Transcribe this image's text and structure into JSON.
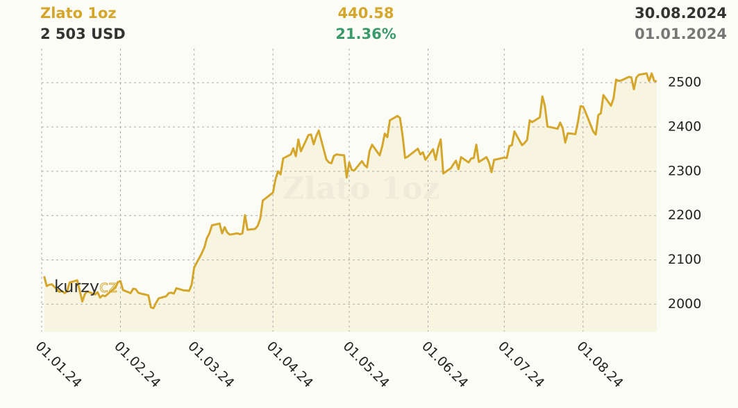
{
  "chart_data": {
    "type": "line",
    "title": "Zlato 1oz",
    "annotations": {
      "price": "2 503 USD",
      "change": "440.58",
      "change_pct": "21.36%",
      "date_end": "30.08.2024",
      "date_start": "01.01.2024",
      "watermark": "Zlato 1oz",
      "logo_main": "kurzy",
      "logo_accent": "cz"
    },
    "x": [
      "2024-01-02",
      "2024-01-03",
      "2024-01-04",
      "2024-01-05",
      "2024-01-08",
      "2024-01-09",
      "2024-01-10",
      "2024-01-11",
      "2024-01-12",
      "2024-01-15",
      "2024-01-16",
      "2024-01-17",
      "2024-01-18",
      "2024-01-19",
      "2024-01-22",
      "2024-01-23",
      "2024-01-24",
      "2024-01-25",
      "2024-01-26",
      "2024-01-29",
      "2024-01-30",
      "2024-01-31",
      "2024-02-01",
      "2024-02-02",
      "2024-02-05",
      "2024-02-06",
      "2024-02-07",
      "2024-02-08",
      "2024-02-09",
      "2024-02-12",
      "2024-02-13",
      "2024-02-14",
      "2024-02-15",
      "2024-02-16",
      "2024-02-19",
      "2024-02-20",
      "2024-02-21",
      "2024-02-22",
      "2024-02-23",
      "2024-02-26",
      "2024-02-27",
      "2024-02-28",
      "2024-02-29",
      "2024-03-01",
      "2024-03-04",
      "2024-03-05",
      "2024-03-06",
      "2024-03-07",
      "2024-03-08",
      "2024-03-11",
      "2024-03-12",
      "2024-03-13",
      "2024-03-14",
      "2024-03-15",
      "2024-03-18",
      "2024-03-19",
      "2024-03-20",
      "2024-03-21",
      "2024-03-22",
      "2024-03-25",
      "2024-03-26",
      "2024-03-27",
      "2024-03-28",
      "2024-04-01",
      "2024-04-02",
      "2024-04-03",
      "2024-04-04",
      "2024-04-05",
      "2024-04-08",
      "2024-04-09",
      "2024-04-10",
      "2024-04-11",
      "2024-04-12",
      "2024-04-15",
      "2024-04-16",
      "2024-04-17",
      "2024-04-18",
      "2024-04-19",
      "2024-04-22",
      "2024-04-23",
      "2024-04-24",
      "2024-04-25",
      "2024-04-26",
      "2024-04-29",
      "2024-04-30",
      "2024-05-01",
      "2024-05-02",
      "2024-05-03",
      "2024-05-06",
      "2024-05-07",
      "2024-05-08",
      "2024-05-09",
      "2024-05-10",
      "2024-05-13",
      "2024-05-14",
      "2024-05-15",
      "2024-05-16",
      "2024-05-17",
      "2024-05-20",
      "2024-05-21",
      "2024-05-22",
      "2024-05-23",
      "2024-05-24",
      "2024-05-28",
      "2024-05-29",
      "2024-05-30",
      "2024-05-31",
      "2024-06-03",
      "2024-06-04",
      "2024-06-05",
      "2024-06-06",
      "2024-06-07",
      "2024-06-10",
      "2024-06-11",
      "2024-06-12",
      "2024-06-13",
      "2024-06-14",
      "2024-06-17",
      "2024-06-18",
      "2024-06-19",
      "2024-06-20",
      "2024-06-21",
      "2024-06-24",
      "2024-06-25",
      "2024-06-26",
      "2024-06-27",
      "2024-06-28",
      "2024-07-01",
      "2024-07-02",
      "2024-07-03",
      "2024-07-04",
      "2024-07-05",
      "2024-07-08",
      "2024-07-09",
      "2024-07-10",
      "2024-07-11",
      "2024-07-12",
      "2024-07-15",
      "2024-07-16",
      "2024-07-17",
      "2024-07-18",
      "2024-07-19",
      "2024-07-22",
      "2024-07-23",
      "2024-07-24",
      "2024-07-25",
      "2024-07-26",
      "2024-07-29",
      "2024-07-30",
      "2024-07-31",
      "2024-08-01",
      "2024-08-02",
      "2024-08-05",
      "2024-08-06",
      "2024-08-07",
      "2024-08-08",
      "2024-08-09",
      "2024-08-12",
      "2024-08-13",
      "2024-08-14",
      "2024-08-15",
      "2024-08-16",
      "2024-08-19",
      "2024-08-20",
      "2024-08-21",
      "2024-08-22",
      "2024-08-23",
      "2024-08-26",
      "2024-08-27",
      "2024-08-28",
      "2024-08-29",
      "2024-08-30"
    ],
    "values": [
      2063,
      2041,
      2044,
      2045,
      2028,
      2030,
      2025,
      2029,
      2049,
      2054,
      2030,
      2006,
      2023,
      2029,
      2022,
      2027,
      2015,
      2020,
      2018,
      2033,
      2037,
      2050,
      2052,
      2032,
      2025,
      2035,
      2034,
      2026,
      2024,
      2020,
      1993,
      1991,
      2003,
      2013,
      2018,
      2025,
      2026,
      2024,
      2036,
      2031,
      2031,
      2030,
      2044,
      2083,
      2115,
      2128,
      2149,
      2160,
      2178,
      2182,
      2160,
      2174,
      2162,
      2157,
      2160,
      2158,
      2160,
      2201,
      2168,
      2170,
      2177,
      2193,
      2234,
      2252,
      2282,
      2300,
      2293,
      2329,
      2338,
      2352,
      2334,
      2372,
      2345,
      2382,
      2383,
      2361,
      2379,
      2392,
      2327,
      2320,
      2318,
      2335,
      2338,
      2336,
      2286,
      2320,
      2303,
      2302,
      2323,
      2314,
      2309,
      2346,
      2360,
      2336,
      2357,
      2385,
      2377,
      2415,
      2425,
      2420,
      2380,
      2330,
      2333,
      2351,
      2338,
      2343,
      2326,
      2350,
      2326,
      2354,
      2372,
      2295,
      2307,
      2316,
      2324,
      2305,
      2332,
      2320,
      2329,
      2330,
      2360,
      2321,
      2332,
      2320,
      2298,
      2326,
      2327,
      2331,
      2330,
      2357,
      2359,
      2390,
      2359,
      2364,
      2371,
      2415,
      2411,
      2422,
      2469,
      2447,
      2401,
      2400,
      2396,
      2410,
      2397,
      2365,
      2386,
      2384,
      2412,
      2447,
      2446,
      2433,
      2390,
      2383,
      2427,
      2431,
      2472,
      2448,
      2465,
      2507,
      2504,
      2505,
      2513,
      2512,
      2485,
      2512,
      2518,
      2521,
      2504,
      2521,
      2504,
      2503
    ],
    "color": "#d4a72c",
    "area_color": "#f7f4df",
    "xlim": [
      "2024-01-01",
      "2024-08-30"
    ],
    "xticks": [
      {
        "value": "2024-01-01",
        "label": "01.01.24"
      },
      {
        "value": "2024-02-01",
        "label": "01.02.24"
      },
      {
        "value": "2024-03-01",
        "label": "01.03.24"
      },
      {
        "value": "2024-04-01",
        "label": "01.04.24"
      },
      {
        "value": "2024-05-01",
        "label": "01.05.24"
      },
      {
        "value": "2024-06-01",
        "label": "01.06.24"
      },
      {
        "value": "2024-07-01",
        "label": "01.07.24"
      },
      {
        "value": "2024-08-01",
        "label": "01.08.24"
      }
    ],
    "ylim": [
      1938,
      2577
    ],
    "yticks": [
      2000,
      2100,
      2200,
      2300,
      2400,
      2500
    ],
    "grid": true
  }
}
